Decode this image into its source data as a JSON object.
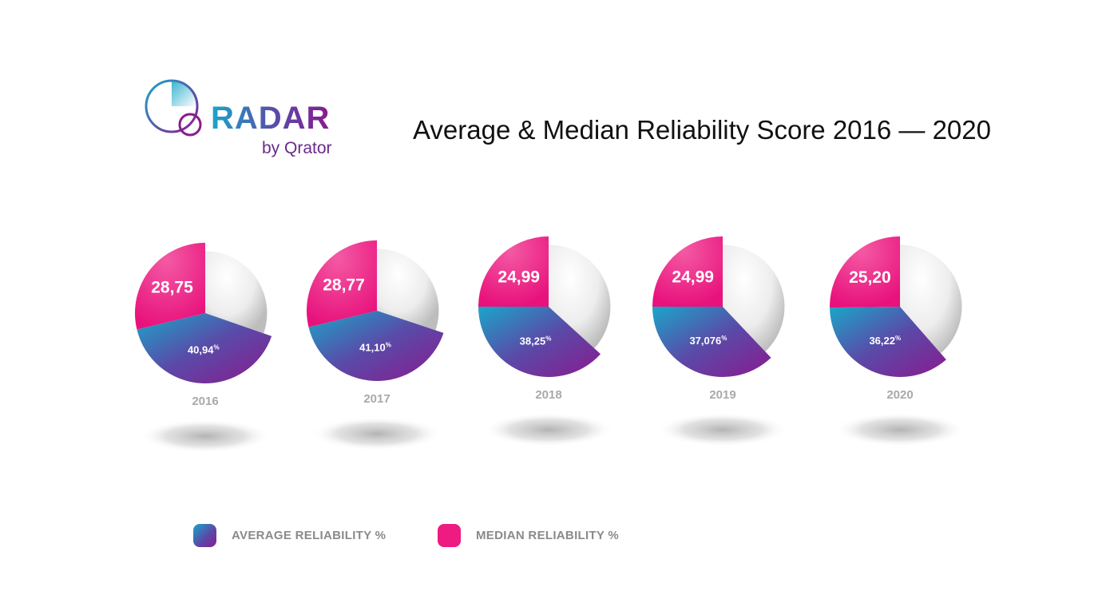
{
  "logo": {
    "name": "RADAR",
    "sub": "by Qrator"
  },
  "chart_data": {
    "type": "pie",
    "title": "Average & Median Reliability Score 2016 — 2020",
    "series_names": [
      "AVERAGE RELIABILITY %",
      "MEDIAN RELIABILITY %"
    ],
    "charts": [
      {
        "year": "2016",
        "median_label": "28,75",
        "average_label": "40,94",
        "average_unit": "%",
        "median": 28.75,
        "average": 40.94
      },
      {
        "year": "2017",
        "median_label": "28,77",
        "average_label": "41,10",
        "average_unit": "%",
        "median": 28.77,
        "average": 41.1
      },
      {
        "year": "2018",
        "median_label": "24,99",
        "average_label": "38,25",
        "average_unit": "%",
        "median": 24.99,
        "average": 38.25
      },
      {
        "year": "2019",
        "median_label": "24,99",
        "average_label": "37,076",
        "average_unit": "%",
        "median": 24.99,
        "average": 37.076
      },
      {
        "year": "2020",
        "median_label": "25,20",
        "average_label": "36,22",
        "average_unit": "%",
        "median": 25.2,
        "average": 36.22
      }
    ]
  },
  "legend": {
    "average_label": "AVERAGE RELIABILITY %",
    "median_label": "MEDIAN RELIABILITY %"
  },
  "colors": {
    "median": "#ee1b82",
    "average_start": "#1aa6c9",
    "average_end": "#8a1a8e",
    "rest": "#eeeeee"
  }
}
